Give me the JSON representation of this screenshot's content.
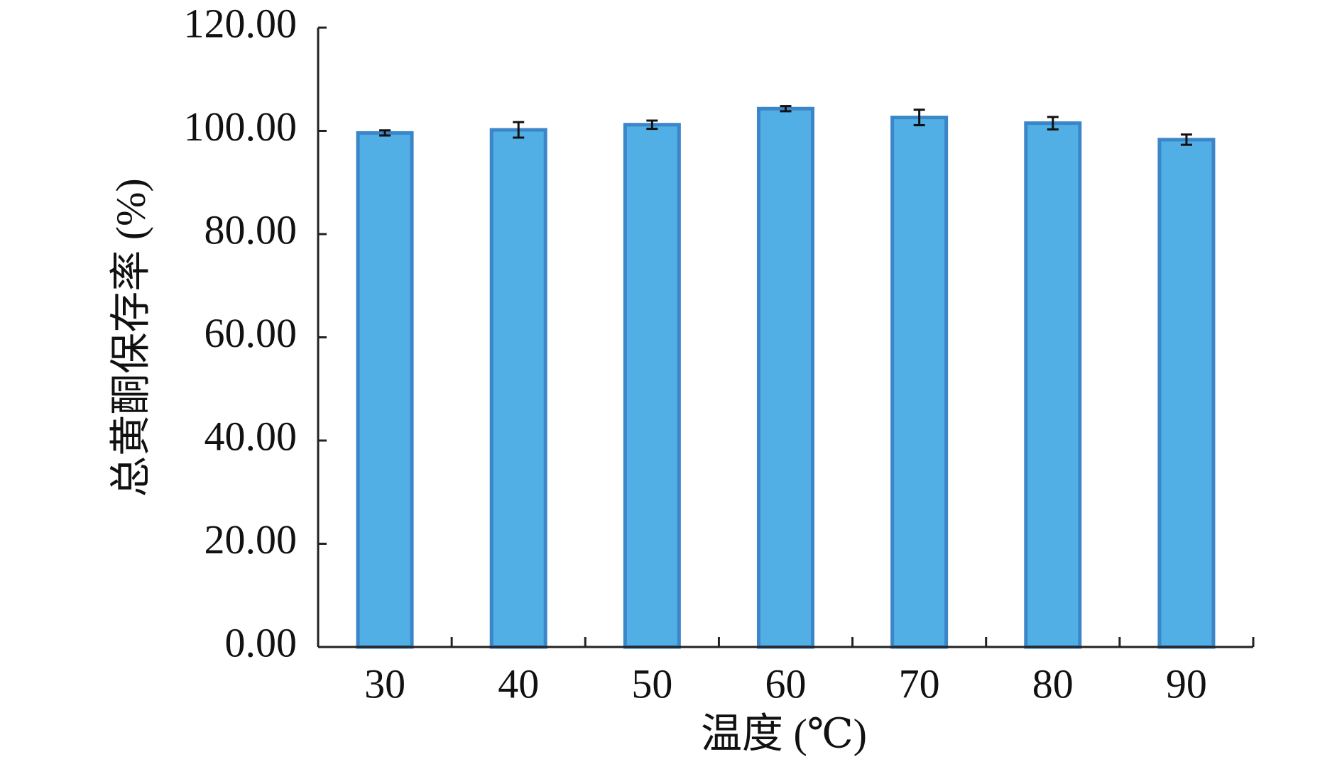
{
  "chart_data": {
    "type": "bar",
    "x_label": "温度 (℃)",
    "y_label": "总黄酮保存率 (%)",
    "categories": [
      "30",
      "40",
      "50",
      "60",
      "70",
      "80",
      "90"
    ],
    "values": [
      99.6,
      100.2,
      101.2,
      104.3,
      102.6,
      101.5,
      98.3
    ],
    "errors": [
      0.5,
      1.5,
      0.8,
      0.5,
      1.5,
      1.2,
      1.0
    ],
    "color": "#52afe6",
    "edge_color": "#3a86c8",
    "ylim": [
      0,
      120
    ],
    "yticks": [
      {
        "value": 0,
        "label": "0.00"
      },
      {
        "value": 20,
        "label": "20.00"
      },
      {
        "value": 40,
        "label": "40.00"
      },
      {
        "value": 60,
        "label": "60.00"
      },
      {
        "value": 80,
        "label": "80.00"
      },
      {
        "value": 100,
        "label": "100.00"
      },
      {
        "value": 120,
        "label": "120.00"
      }
    ],
    "grid": false
  }
}
